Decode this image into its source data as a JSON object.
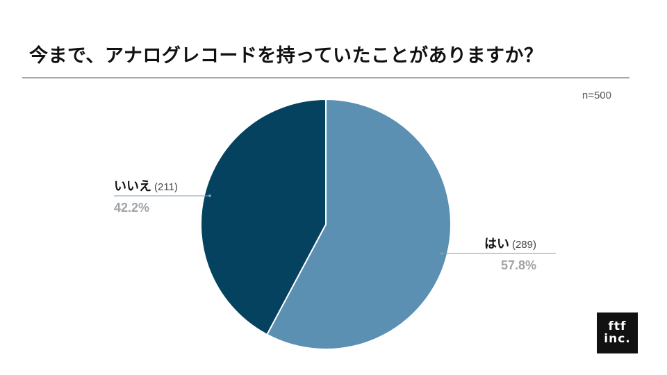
{
  "title": "今まで、アナログレコードを持っていたことがありますか？",
  "sample_size": "n=500",
  "logo": {
    "line1": "ftf",
    "line2": "inc."
  },
  "colors": {
    "yes": "#5b90b2",
    "no": "#04425f",
    "leader": "#7b9eb6",
    "pct": "#a3a3a3"
  },
  "chart_data": {
    "type": "pie",
    "slices": [
      {
        "label": "はい",
        "count_text": "(289)",
        "percent_text": "57.8%",
        "value": 289,
        "color": "#5b90b2"
      },
      {
        "label": "いいえ",
        "count_text": "(211)",
        "percent_text": "42.2%",
        "value": 211,
        "color": "#04425f"
      }
    ],
    "total": 500,
    "start": "top, clockwise"
  }
}
